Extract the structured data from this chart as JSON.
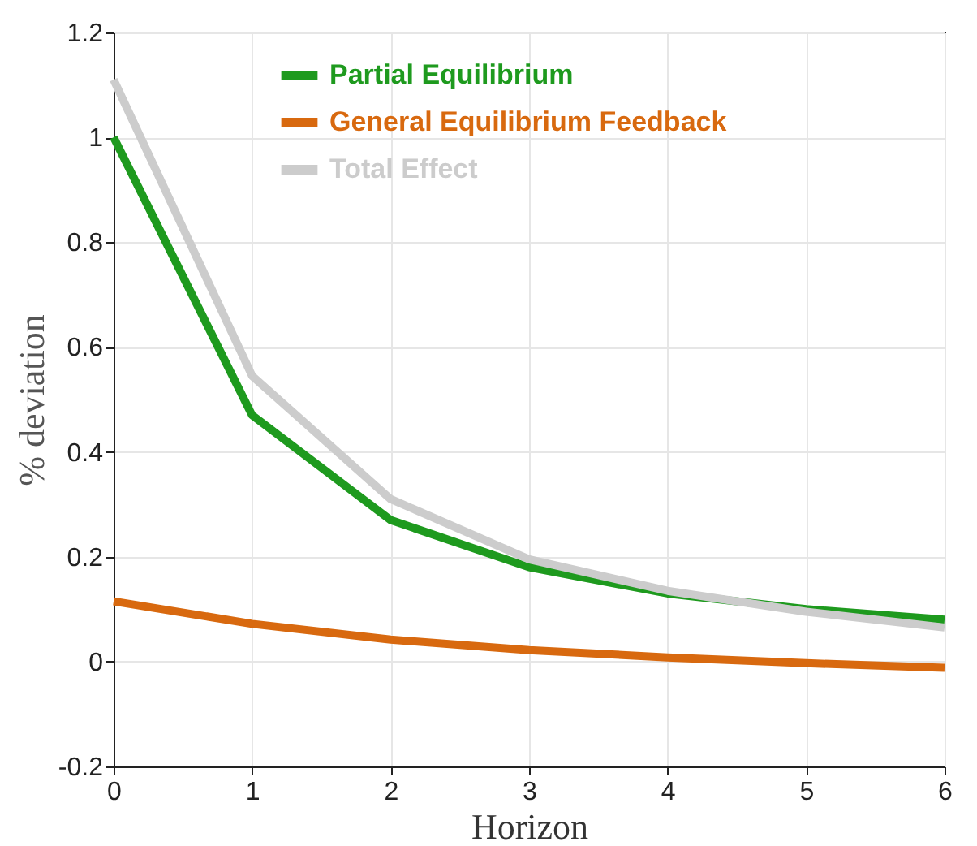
{
  "chart_data": {
    "type": "line",
    "xlabel": "Horizon",
    "ylabel": "% deviation",
    "x": [
      0,
      1,
      2,
      3,
      4,
      5,
      6
    ],
    "series": [
      {
        "name": "Partial Equilibrium",
        "color": "#1e9a1e",
        "values": [
          1.0,
          0.47,
          0.27,
          0.18,
          0.13,
          0.1,
          0.08
        ]
      },
      {
        "name": "General Equilibrium Feedback",
        "color": "#d8690f",
        "values": [
          0.115,
          0.072,
          0.042,
          0.022,
          0.008,
          -0.003,
          -0.012
        ]
      },
      {
        "name": "Total Effect",
        "color": "#cccccc",
        "values": [
          1.11,
          0.545,
          0.31,
          0.195,
          0.135,
          0.095,
          0.065
        ]
      }
    ],
    "xlim": [
      0,
      6
    ],
    "xticks": [
      0,
      1,
      2,
      3,
      4,
      5,
      6
    ],
    "ylim": [
      -0.2,
      1.2
    ],
    "yticks": [
      -0.2,
      0,
      0.2,
      0.4,
      0.6,
      0.8,
      1,
      1.2
    ],
    "grid": true,
    "legend": "top",
    "marker": "none",
    "line_style": "solid"
  }
}
